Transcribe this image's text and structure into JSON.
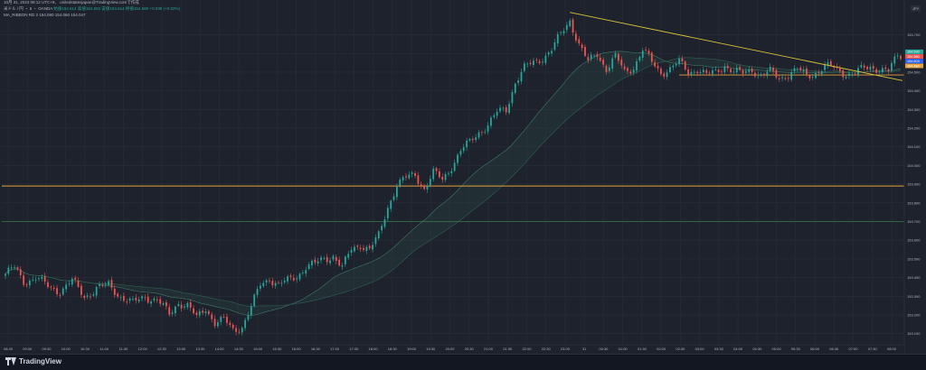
{
  "header": {
    "title_line": "10月 31, 2024 08:12 UTC+9、 unitedstatesjapan@TradingView.comで作成",
    "ohlc_line": {
      "symbol": "米ドル / 円 ・ 5 ・ OANDA",
      "open": "始値154.514",
      "high": "高値154.592",
      "low": "安値154.514",
      "close": "終値154.590",
      "change": "+0.036 (+0.02%)"
    },
    "ma_line": "MA_RIBBON RD 2  154.080  154.060  154.047"
  },
  "scale_button": "JPY",
  "footer": {
    "brand": "TradingView"
  },
  "colors": {
    "background": "#1e222d",
    "up": "#26a69a",
    "down": "#ef5350",
    "trendline": "#d9c43a",
    "support": "#e6a23c",
    "green_level": "#3a7a4a",
    "ribbon": "#2e5c4e"
  },
  "chart_data": {
    "type": "candlestick",
    "title": "米ドル / 円 ・ 5 ・ OANDA",
    "ylim": [
      153.05,
      154.78
    ],
    "y_ticks": [
      "154.700",
      "154.600",
      "154.500",
      "154.400",
      "154.300",
      "154.200",
      "154.100",
      "154.000",
      "153.900",
      "153.800",
      "153.700",
      "153.600",
      "153.500",
      "153.400",
      "153.300",
      "153.200",
      "153.100"
    ],
    "x_ticks": [
      "08:30",
      "09:00",
      "09:30",
      "10:00",
      "10:30",
      "11:00",
      "11:30",
      "12:00",
      "12:30",
      "13:00",
      "13:30",
      "14:00",
      "14:30",
      "15:00",
      "15:30",
      "16:00",
      "16:30",
      "17:00",
      "17:30",
      "18:00",
      "18:30",
      "19:00",
      "19:30",
      "20:00",
      "20:30",
      "21:00",
      "21:30",
      "22:00",
      "22:30",
      "23:00",
      "31",
      "00:30",
      "01:00",
      "01:30",
      "02:00",
      "02:30",
      "03:00",
      "03:30",
      "04:00",
      "04:30",
      "05:00",
      "05:30",
      "06:00",
      "06:30",
      "07:00",
      "07:30",
      "08:00"
    ],
    "horizontal_levels": [
      {
        "name": "green-level",
        "value": 153.7,
        "color": "#3a7a4a"
      },
      {
        "name": "orange-level",
        "value": 153.89,
        "color": "#e6a23c",
        "label": "153.890"
      },
      {
        "name": "support-line",
        "value": 154.485,
        "color": "#e6a23c"
      }
    ],
    "trendline": {
      "from": {
        "x": "22:00",
        "y": 154.82
      },
      "to": {
        "x": "08:10",
        "y": 154.455
      }
    },
    "price_labels": [
      {
        "text": "154.590",
        "color": "#26a69a"
      },
      {
        "text": "154.580",
        "color": "#ef5350"
      },
      {
        "text": "154.503",
        "color": "#2962ff"
      },
      {
        "text": "154.480",
        "color": "#e6a23c"
      }
    ],
    "close_path": [
      [
        0,
        153.42
      ],
      [
        3,
        153.45
      ],
      [
        6,
        153.38
      ],
      [
        10,
        153.4
      ],
      [
        14,
        153.35
      ],
      [
        18,
        153.33
      ],
      [
        22,
        153.38
      ],
      [
        26,
        153.3
      ],
      [
        30,
        153.34
      ],
      [
        34,
        153.36
      ],
      [
        38,
        153.3
      ],
      [
        42,
        153.26
      ],
      [
        46,
        153.3
      ],
      [
        50,
        153.28
      ],
      [
        54,
        153.2
      ],
      [
        57,
        153.27
      ],
      [
        60,
        153.25
      ],
      [
        63,
        153.18
      ],
      [
        66,
        153.24
      ],
      [
        69,
        153.16
      ],
      [
        72,
        153.17
      ],
      [
        75,
        153.12
      ],
      [
        78,
        153.14
      ],
      [
        81,
        153.24
      ],
      [
        84,
        153.36
      ],
      [
        87,
        153.4
      ],
      [
        90,
        153.36
      ],
      [
        93,
        153.38
      ],
      [
        96,
        153.41
      ],
      [
        99,
        153.46
      ],
      [
        102,
        153.47
      ],
      [
        105,
        153.5
      ],
      [
        108,
        153.52
      ],
      [
        111,
        153.45
      ],
      [
        114,
        153.55
      ],
      [
        117,
        153.58
      ],
      [
        120,
        153.55
      ],
      [
        123,
        153.62
      ],
      [
        126,
        153.78
      ],
      [
        129,
        153.9
      ],
      [
        132,
        153.93
      ],
      [
        135,
        153.95
      ],
      [
        138,
        153.88
      ],
      [
        141,
        153.96
      ],
      [
        144,
        153.92
      ],
      [
        147,
        154.0
      ],
      [
        150,
        154.08
      ],
      [
        153,
        154.12
      ],
      [
        156,
        154.18
      ],
      [
        159,
        154.22
      ],
      [
        162,
        154.28
      ],
      [
        165,
        154.3
      ],
      [
        168,
        154.45
      ],
      [
        171,
        154.52
      ],
      [
        174,
        154.55
      ],
      [
        177,
        154.58
      ],
      [
        180,
        154.62
      ],
      [
        183,
        154.7
      ],
      [
        186,
        154.78
      ],
      [
        189,
        154.65
      ],
      [
        192,
        154.55
      ],
      [
        195,
        154.6
      ],
      [
        198,
        154.52
      ],
      [
        201,
        154.58
      ],
      [
        204,
        154.5
      ],
      [
        207,
        154.53
      ],
      [
        210,
        154.62
      ],
      [
        213,
        154.55
      ],
      [
        216,
        154.5
      ],
      [
        219,
        154.52
      ],
      [
        222,
        154.55
      ],
      [
        225,
        154.5
      ],
      [
        228,
        154.52
      ],
      [
        231,
        154.48
      ],
      [
        234,
        154.5
      ],
      [
        237,
        154.54
      ],
      [
        240,
        154.5
      ],
      [
        243,
        154.49
      ],
      [
        246,
        154.52
      ],
      [
        249,
        154.48
      ],
      [
        252,
        154.5
      ],
      [
        255,
        154.47
      ],
      [
        258,
        154.49
      ],
      [
        261,
        154.51
      ],
      [
        264,
        154.48
      ],
      [
        267,
        154.5
      ],
      [
        270,
        154.53
      ],
      [
        273,
        154.52
      ],
      [
        276,
        154.5
      ],
      [
        279,
        154.49
      ],
      [
        282,
        154.51
      ],
      [
        285,
        154.53
      ],
      [
        288,
        154.52
      ],
      [
        291,
        154.5
      ],
      [
        294,
        154.59
      ]
    ]
  }
}
